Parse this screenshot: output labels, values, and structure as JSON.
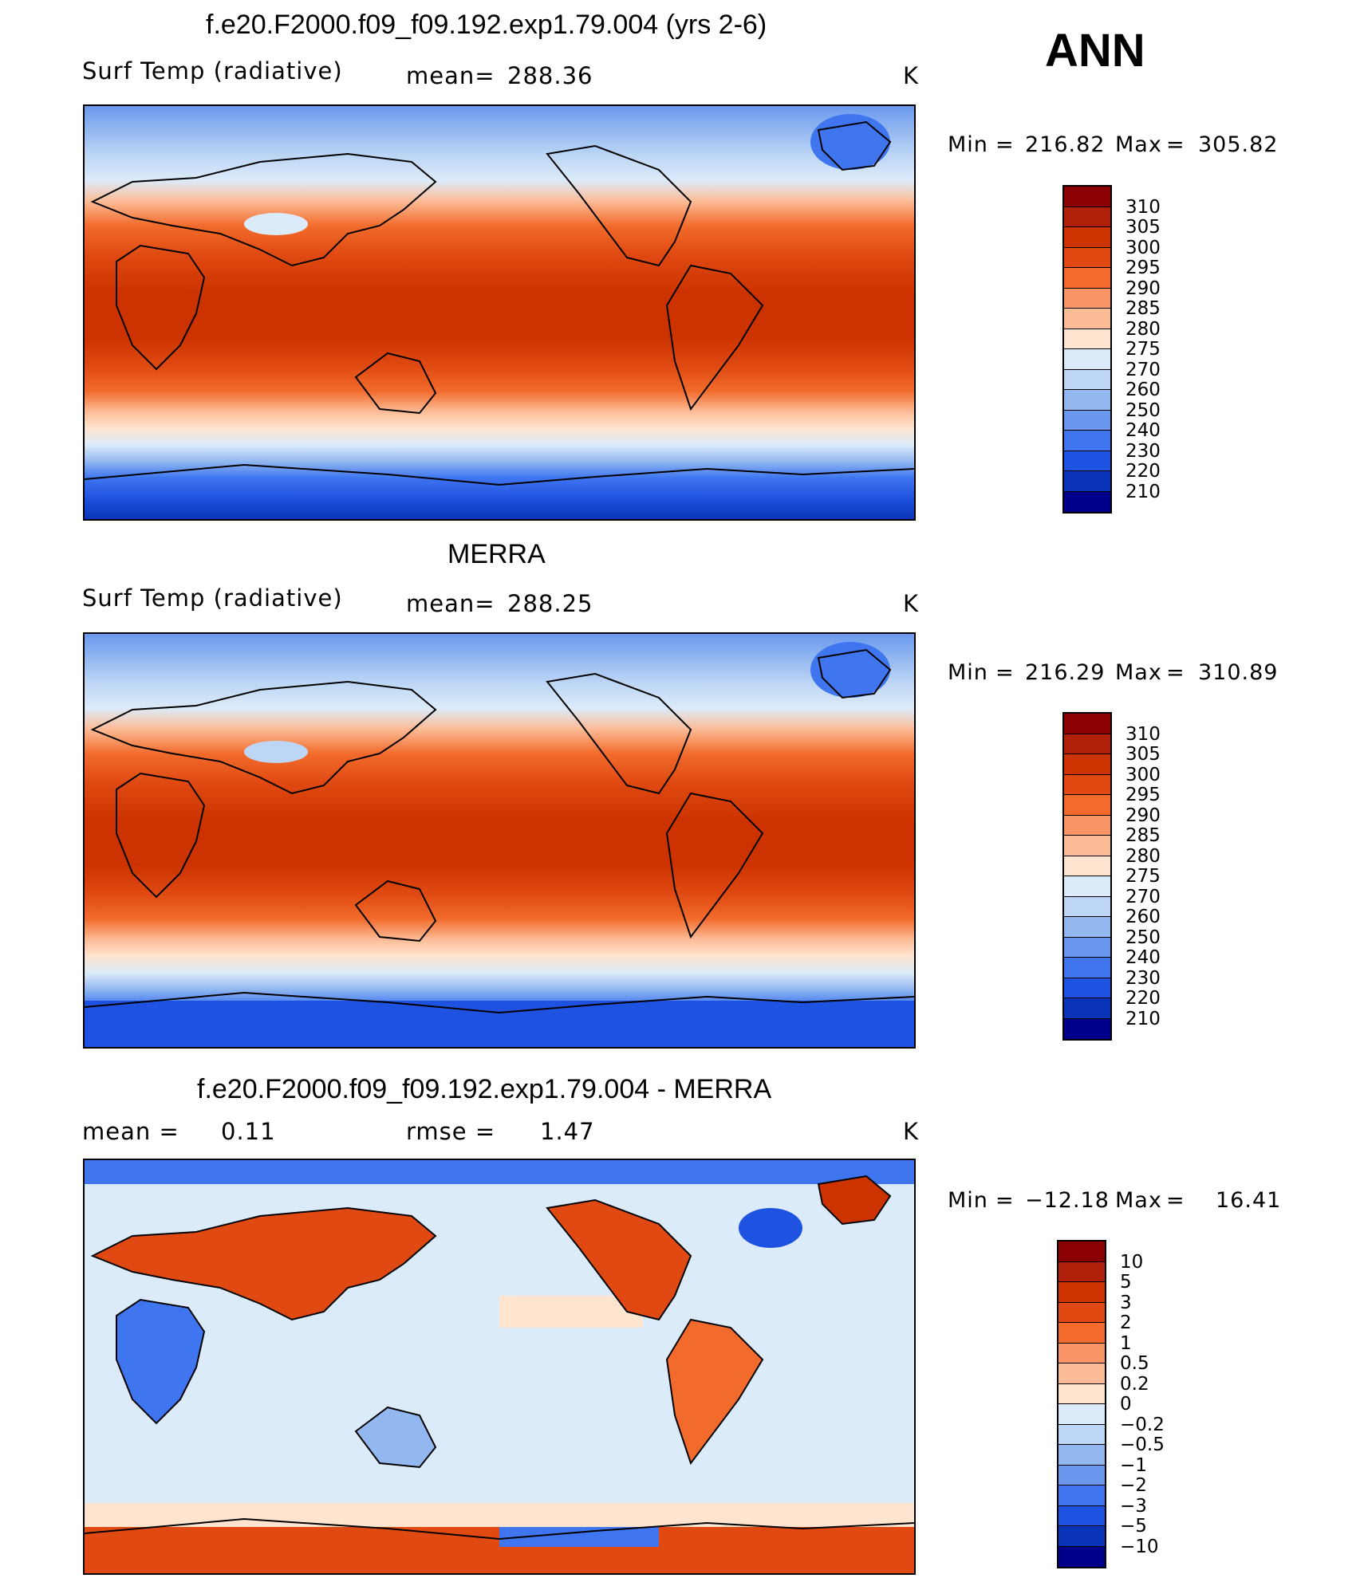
{
  "season": "ANN",
  "panels": [
    {
      "title": "f.e20.F2000.f09_f09.192.exp1.79.004 (yrs 2-6)",
      "left_text": "Surf Temp (radiative)",
      "center_label": "mean=",
      "center_value": "288.36",
      "units": "K",
      "min_label": "Min",
      "min_value": "216.82",
      "max_label": "Max",
      "max_value": "305.82"
    },
    {
      "title": "MERRA",
      "left_text": "Surf Temp (radiative)",
      "center_label": "mean=",
      "center_value": "288.25",
      "units": "K",
      "min_label": "Min",
      "min_value": "216.29",
      "max_label": "Max",
      "max_value": "310.89"
    },
    {
      "title": "f.e20.F2000.f09_f09.192.exp1.79.004 - MERRA",
      "left_text": "mean =",
      "left_value": "0.11",
      "center_label": "rmse =",
      "center_value": "1.47",
      "units": "K",
      "min_label": "Min",
      "min_value": "−12.18",
      "max_label": "Max",
      "max_value": "16.41"
    }
  ],
  "colorbars": {
    "temperature": {
      "labels": [
        "310",
        "305",
        "300",
        "295",
        "290",
        "285",
        "280",
        "275",
        "270",
        "260",
        "250",
        "240",
        "230",
        "220",
        "210"
      ],
      "colors": [
        "#8b0000",
        "#b0200a",
        "#cc3300",
        "#e04a12",
        "#f26b2c",
        "#f89465",
        "#fcbc97",
        "#ffe4d0",
        "#dcebfa",
        "#bdd6f5",
        "#93b8f0",
        "#6b98ee",
        "#3f76f0",
        "#1e52e0",
        "#0a34b8",
        "#00008b"
      ]
    },
    "difference": {
      "labels": [
        "10",
        "5",
        "3",
        "2",
        "1",
        "0.5",
        "0.2",
        "0",
        "−0.2",
        "−0.5",
        "−1",
        "−2",
        "−3",
        "−5",
        "−10"
      ],
      "colors": [
        "#8b0000",
        "#b0200a",
        "#cc3300",
        "#e04a12",
        "#f26b2c",
        "#f89465",
        "#fcbc97",
        "#ffe4d0",
        "#dcebfa",
        "#bdd6f5",
        "#93b8f0",
        "#6b98ee",
        "#3f76f0",
        "#1e52e0",
        "#0a34b8",
        "#00008b"
      ]
    }
  }
}
